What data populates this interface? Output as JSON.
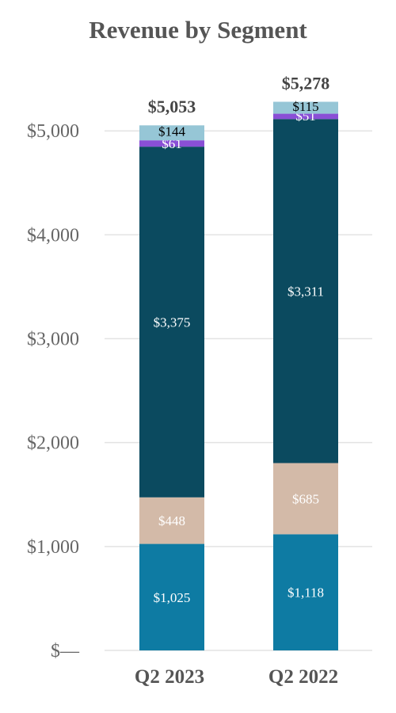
{
  "chart_data": {
    "type": "bar",
    "stacked": true,
    "title": "Revenue by Segment",
    "categories": [
      "Q2 2023",
      "Q2 2022"
    ],
    "totals": [
      "$5,053",
      "$5,278"
    ],
    "y_ticks": [
      "$—",
      "$1,000",
      "$2,000",
      "$3,000",
      "$4,000",
      "$5,000"
    ],
    "ylim": [
      0,
      5300
    ],
    "grid": true,
    "series": [
      {
        "values": [
          1025,
          1118
        ],
        "labels": [
          "$1,025",
          "$1,118"
        ],
        "color": "#0e7ba3",
        "label_color": "#ffffff"
      },
      {
        "values": [
          448,
          685
        ],
        "labels": [
          "$448",
          "$685"
        ],
        "color": "#d3baa8",
        "label_color": "#ffffff"
      },
      {
        "values": [
          3375,
          3311
        ],
        "labels": [
          "$3,375",
          "$3,311"
        ],
        "color": "#0b4a5f",
        "label_color": "#ffffff"
      },
      {
        "values": [
          61,
          51
        ],
        "labels": [
          "$61",
          "$51"
        ],
        "color": "#8a4fd6",
        "label_color": "#ffffff"
      },
      {
        "values": [
          144,
          115
        ],
        "labels": [
          "$144",
          "$115"
        ],
        "color": "#96c6d6",
        "label_color": "#000000"
      }
    ]
  }
}
